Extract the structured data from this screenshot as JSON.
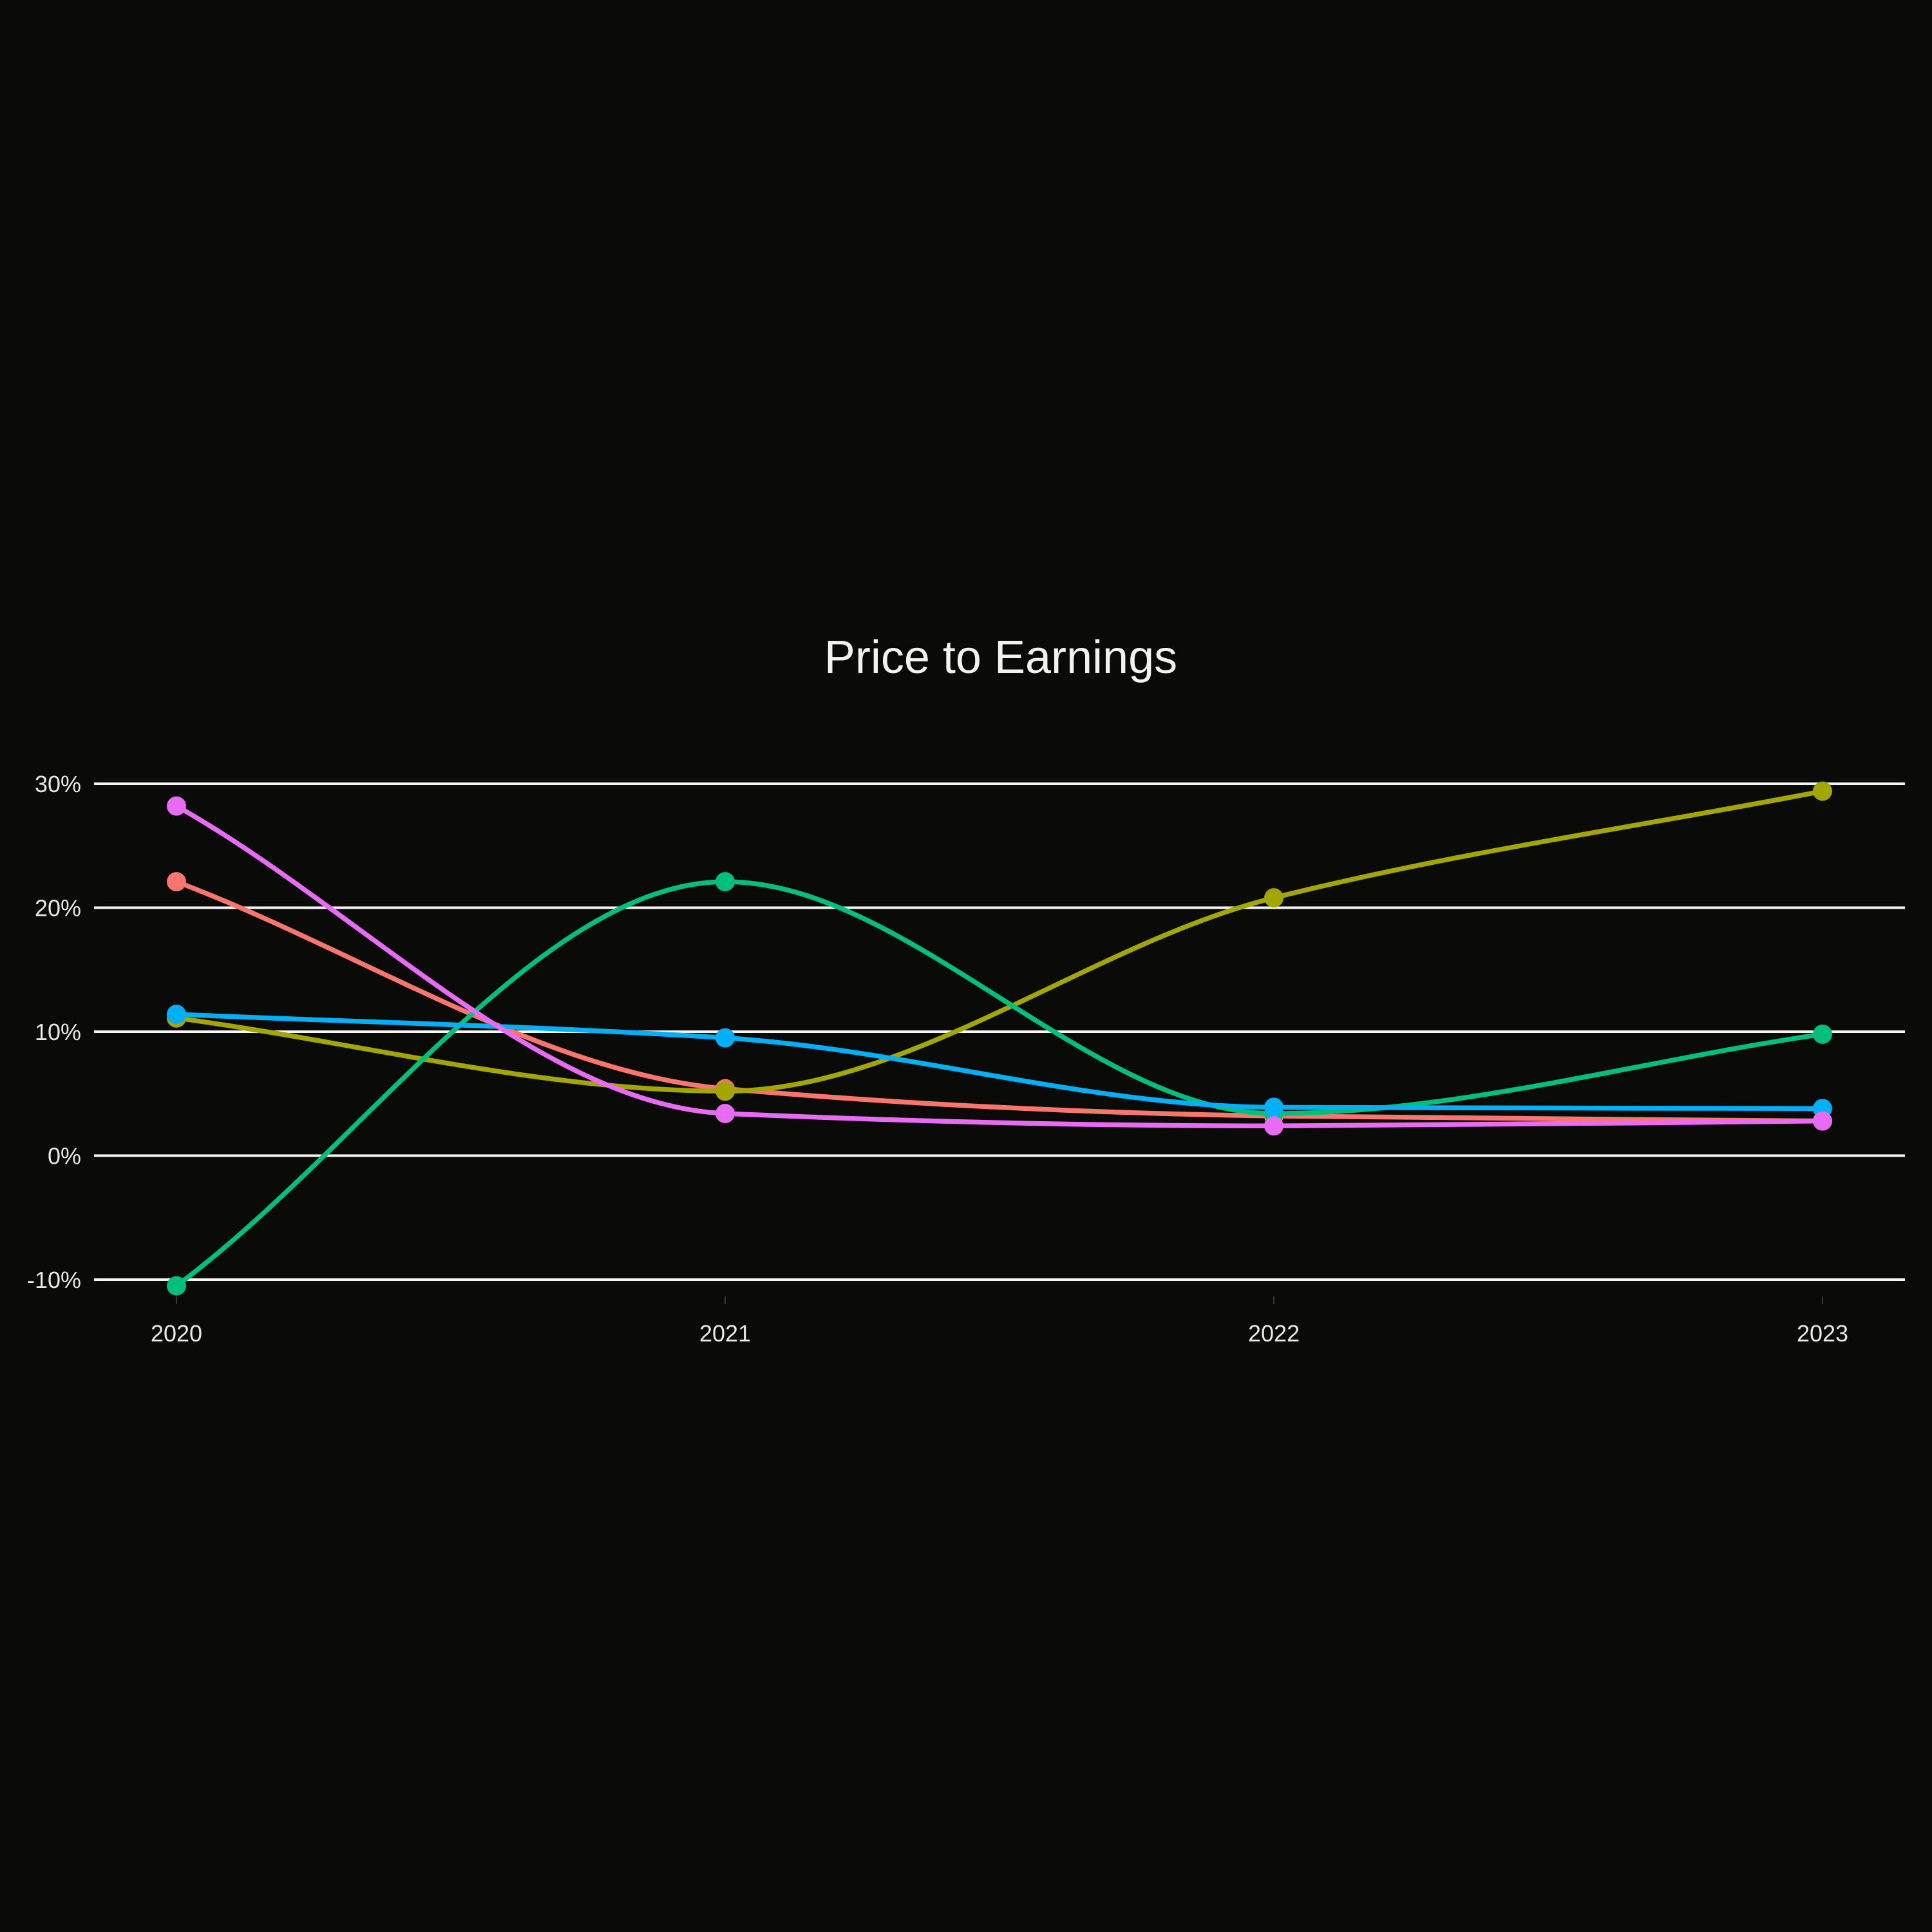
{
  "chart_data": {
    "type": "line",
    "title": "Price to Earnings",
    "xlabel": "",
    "ylabel": "",
    "categories": [
      "2020",
      "2021",
      "2022",
      "2023"
    ],
    "ylim": [
      -10,
      30
    ],
    "yticks": [
      -10,
      0,
      10,
      20,
      30
    ],
    "ytick_labels": [
      "-10%",
      "0%",
      "10%",
      "20%",
      "30%"
    ],
    "grid": true,
    "legend": "none",
    "smooth": true,
    "series": [
      {
        "color": "#f8766d",
        "values": [
          22.1,
          5.4,
          3.2,
          2.8
        ]
      },
      {
        "color": "#a3a500",
        "values": [
          11.1,
          5.2,
          20.8,
          29.4
        ]
      },
      {
        "color": "#00bf7d",
        "values": [
          -10.5,
          22.1,
          3.4,
          9.8
        ]
      },
      {
        "color": "#00b0f6",
        "values": [
          11.4,
          9.5,
          3.9,
          3.8
        ]
      },
      {
        "color": "#e76bf3",
        "values": [
          28.2,
          3.4,
          2.4,
          2.8
        ]
      }
    ]
  }
}
